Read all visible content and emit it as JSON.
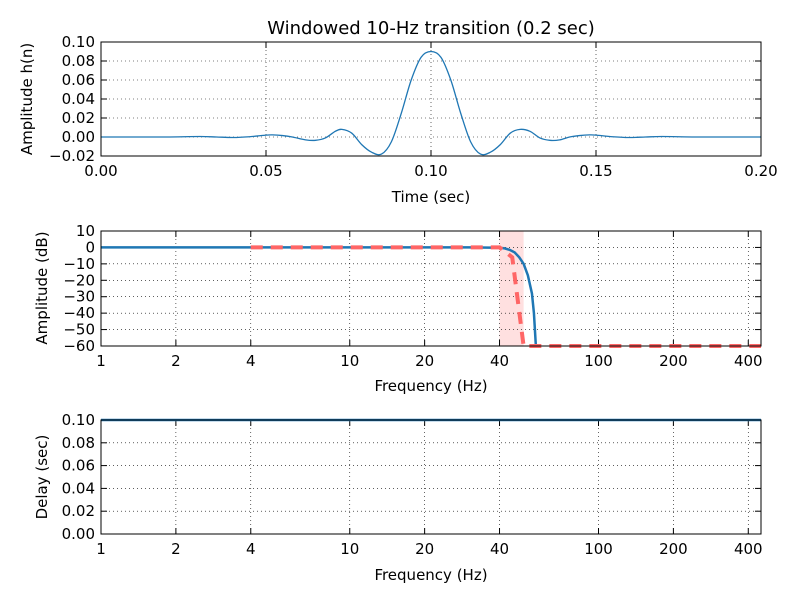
{
  "chart_data": [
    {
      "type": "line",
      "title": "Windowed 10-Hz transition (0.2 sec)",
      "xlabel": "Time (sec)",
      "ylabel": "Amplitude h(n)",
      "xlim": [
        0.0,
        0.2
      ],
      "ylim": [
        -0.02,
        0.1
      ],
      "x_ticks": [
        "0.00",
        "0.05",
        "0.10",
        "0.15",
        "0.20"
      ],
      "y_ticks": [
        "−0.02",
        "0.00",
        "0.02",
        "0.04",
        "0.06",
        "0.08",
        "0.10"
      ],
      "grid": true,
      "series": [
        {
          "color": "#1f77b4",
          "x": [
            0.0,
            0.01,
            0.02,
            0.03,
            0.035,
            0.04,
            0.045,
            0.05,
            0.052,
            0.055,
            0.058,
            0.062,
            0.065,
            0.068,
            0.071,
            0.073,
            0.076,
            0.079,
            0.082,
            0.085,
            0.088,
            0.091,
            0.094,
            0.097,
            0.1,
            0.103,
            0.106,
            0.109,
            0.112,
            0.115,
            0.118,
            0.121,
            0.124,
            0.127,
            0.13,
            0.133,
            0.136,
            0.139,
            0.142,
            0.145,
            0.148,
            0.15,
            0.155,
            0.16,
            0.165,
            0.17,
            0.18,
            0.19,
            0.2
          ],
          "y": [
            0.0,
            0.0,
            0.0,
            0.0005,
            0.0,
            -0.0005,
            0.0003,
            0.002,
            0.0022,
            0.0015,
            0.0,
            -0.003,
            -0.0035,
            -0.001,
            0.006,
            0.008,
            0.004,
            -0.008,
            -0.016,
            -0.018,
            -0.005,
            0.025,
            0.06,
            0.084,
            0.09,
            0.084,
            0.06,
            0.025,
            -0.005,
            -0.018,
            -0.016,
            -0.008,
            0.004,
            0.008,
            0.006,
            -0.001,
            -0.0035,
            -0.003,
            0.0,
            0.0015,
            0.0022,
            0.002,
            0.0003,
            -0.0005,
            0.0,
            0.0005,
            0.0,
            0.0,
            0.0
          ]
        }
      ]
    },
    {
      "type": "line",
      "xlabel": "Frequency (Hz)",
      "ylabel": "Amplitude (dB)",
      "xscale": "log",
      "xlim": [
        1,
        450
      ],
      "ylim": [
        -60,
        10
      ],
      "x_ticks": [
        "1",
        "2",
        "4",
        "10",
        "20",
        "40",
        "100",
        "200",
        "400"
      ],
      "x_tick_values": [
        1,
        2,
        4,
        10,
        20,
        40,
        100,
        200,
        400
      ],
      "y_ticks": [
        "10",
        "0",
        "−10",
        "−20",
        "−30",
        "−40",
        "−50",
        "−60"
      ],
      "grid": true,
      "transition_band": [
        40,
        50
      ],
      "series": [
        {
          "style": "solid",
          "color": "#1f77b4",
          "x": [
            1,
            10,
            30,
            40,
            42,
            44,
            46,
            48,
            50,
            52,
            54,
            55,
            56
          ],
          "y": [
            0,
            0,
            0,
            -0.2,
            -0.6,
            -1.5,
            -3,
            -6,
            -10,
            -17,
            -28,
            -40,
            -60
          ]
        },
        {
          "style": "dashed",
          "color": "#ff6666",
          "x": [
            4,
            40,
            45,
            50,
            50,
            450
          ],
          "y": [
            0,
            0,
            -6,
            -60,
            -60,
            -60
          ]
        }
      ]
    },
    {
      "type": "line",
      "xlabel": "Frequency (Hz)",
      "ylabel": "Delay (sec)",
      "xscale": "log",
      "xlim": [
        1,
        450
      ],
      "ylim": [
        0.0,
        0.1
      ],
      "x_ticks": [
        "1",
        "2",
        "4",
        "10",
        "20",
        "40",
        "100",
        "200",
        "400"
      ],
      "x_tick_values": [
        1,
        2,
        4,
        10,
        20,
        40,
        100,
        200,
        400
      ],
      "y_ticks": [
        "0.10",
        "0.08",
        "0.06",
        "0.04",
        "0.02",
        "0.00"
      ],
      "grid": true,
      "series": [
        {
          "color": "#1f77b4",
          "x": [
            1,
            450
          ],
          "y": [
            0.1,
            0.1
          ]
        }
      ]
    }
  ]
}
